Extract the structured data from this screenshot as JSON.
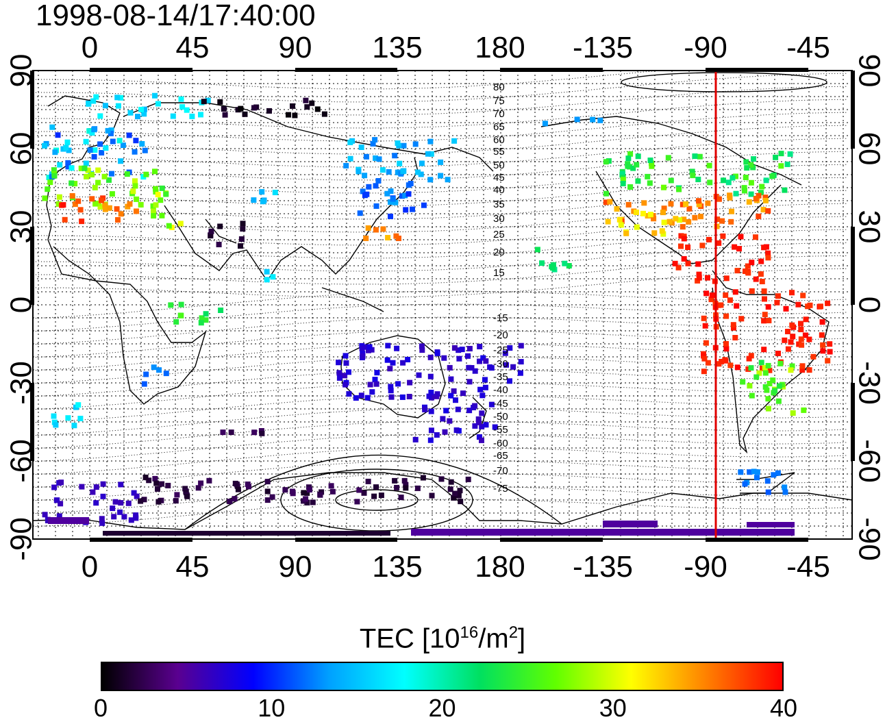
{
  "timestamp": "1998-08-14/17:40:00",
  "map": {
    "lon_ticks": [
      "0",
      "45",
      "90",
      "135",
      "180",
      "-135",
      "-90",
      "-45"
    ],
    "lat_ticks": [
      "90",
      "60",
      "30",
      "0",
      "-30",
      "-60",
      "-90"
    ],
    "contour_labels_north": [
      "80",
      "75",
      "70",
      "65",
      "60",
      "55",
      "50",
      "45",
      "40",
      "35",
      "30",
      "25",
      "20",
      "15"
    ],
    "contour_labels_south": [
      "-15",
      "-20",
      "-25",
      "-30",
      "-35",
      "-40",
      "-45",
      "-50",
      "-55",
      "-60",
      "-65",
      "-70",
      "-75"
    ],
    "marker_color": "#e00000"
  },
  "colorbar": {
    "title": "TEC  [10",
    "title_exp": "16",
    "title_unit": "/m",
    "title_unit_exp": "2",
    "title_close": "]",
    "tick_labels": [
      "0",
      "10",
      "20",
      "30",
      "40"
    ],
    "range": [
      0,
      40
    ],
    "colors": [
      "#000000",
      "#5a0090",
      "#0000ff",
      "#00a0ff",
      "#00ffff",
      "#00e060",
      "#60ff00",
      "#ffff00",
      "#ff8000",
      "#ff0000"
    ]
  }
}
